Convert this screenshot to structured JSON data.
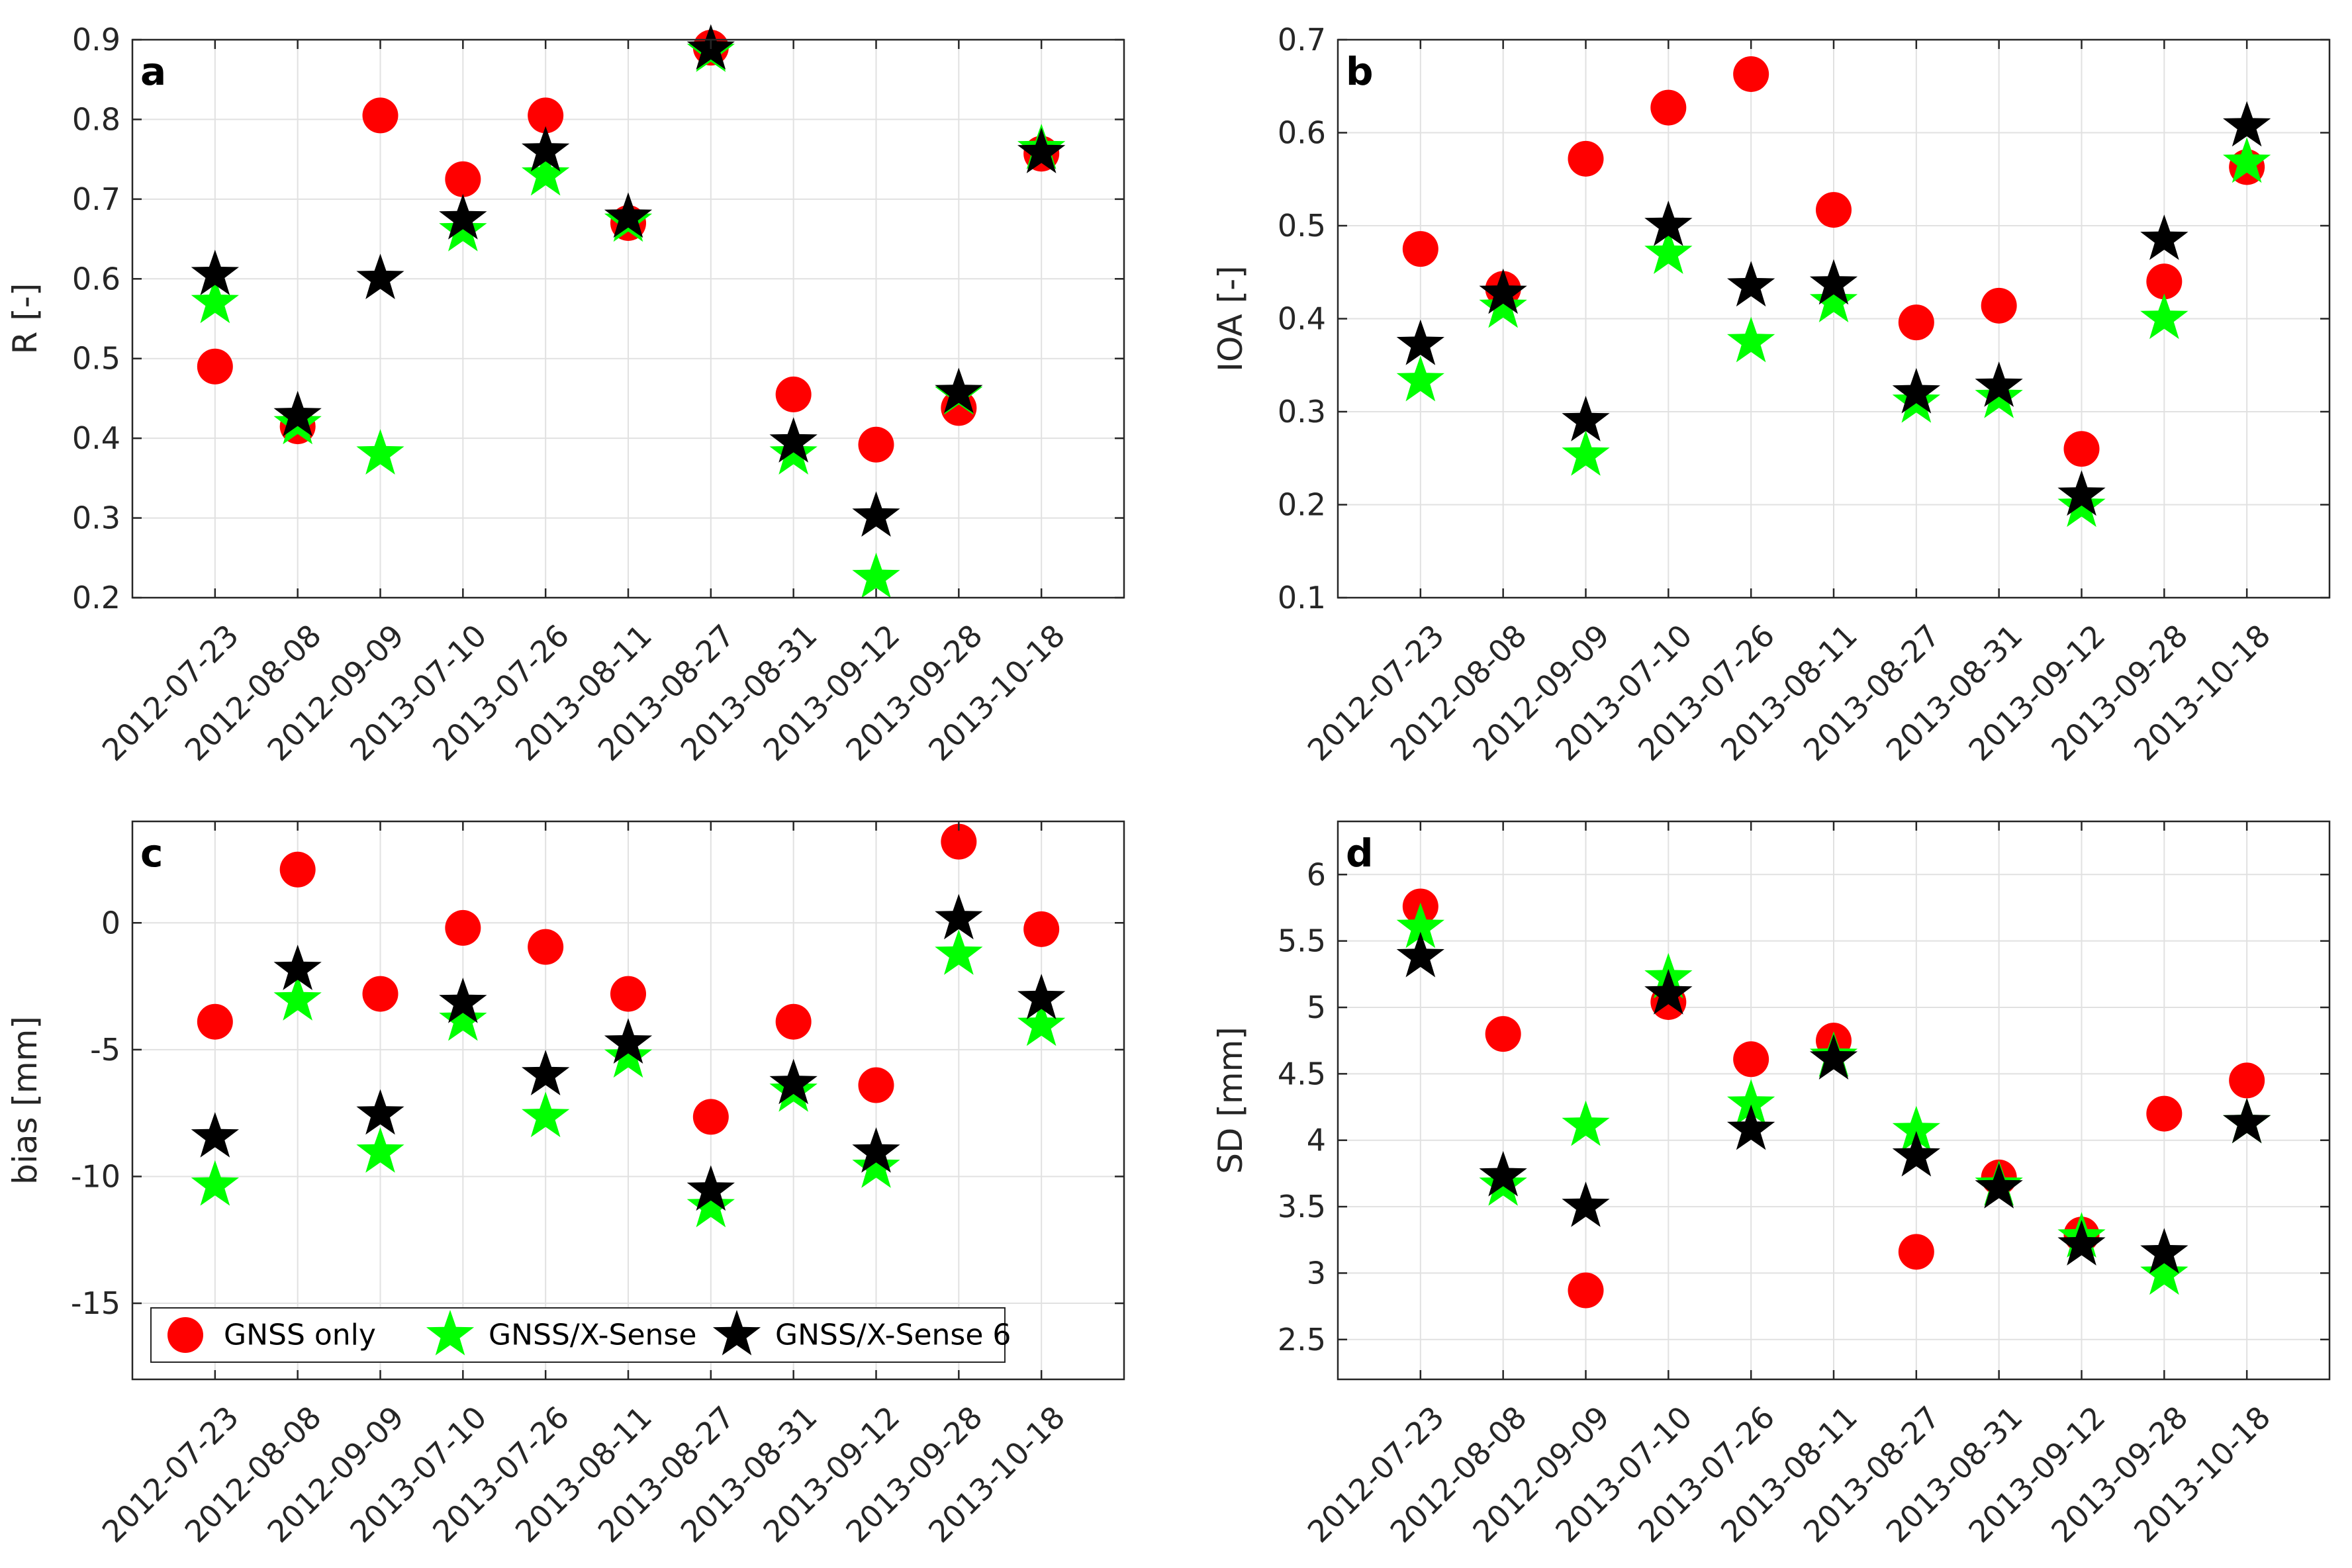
{
  "chart_data": [
    {
      "type": "scatter",
      "panel_label": "a",
      "ylabel": "R [-]",
      "ylim": [
        0.2,
        0.9
      ],
      "yticks": [
        0.2,
        0.3,
        0.4,
        0.5,
        0.6,
        0.7,
        0.8,
        0.9
      ],
      "ytick_labels": [
        "0.2",
        "0.3",
        "0.4",
        "0.5",
        "0.6",
        "0.7",
        "0.8",
        "0.9"
      ],
      "grid": true,
      "categories": [
        "2012-07-23",
        "2012-08-08",
        "2012-09-09",
        "2013-07-10",
        "2013-07-26",
        "2013-08-11",
        "2013-08-27",
        "2013-08-31",
        "2013-09-12",
        "2013-09-28",
        "2013-10-18"
      ],
      "series": [
        {
          "name": "GNSS only",
          "marker": "circle",
          "values": [
            0.49,
            0.415,
            0.805,
            0.725,
            0.805,
            0.67,
            0.89,
            0.455,
            0.392,
            0.438,
            0.757
          ]
        },
        {
          "name": "GNSS/X-Sense",
          "marker": "star",
          "values": [
            0.57,
            0.418,
            0.38,
            0.66,
            0.73,
            0.672,
            0.885,
            0.38,
            0.225,
            0.455,
            0.763
          ]
        },
        {
          "name": "GNSS/X-Sense 6",
          "marker": "star",
          "values": [
            0.605,
            0.428,
            0.6,
            0.675,
            0.76,
            0.677,
            0.888,
            0.395,
            0.302,
            0.457,
            0.758
          ]
        }
      ]
    },
    {
      "type": "scatter",
      "panel_label": "b",
      "ylabel": "IOA [-]",
      "ylim": [
        0.1,
        0.7
      ],
      "yticks": [
        0.1,
        0.2,
        0.3,
        0.4,
        0.5,
        0.6,
        0.7
      ],
      "ytick_labels": [
        "0.1",
        "0.2",
        "0.3",
        "0.4",
        "0.5",
        "0.6",
        "0.7"
      ],
      "grid": true,
      "categories": [
        "2012-07-23",
        "2012-08-08",
        "2012-09-09",
        "2013-07-10",
        "2013-07-26",
        "2013-08-11",
        "2013-08-27",
        "2013-08-31",
        "2013-09-12",
        "2013-09-28",
        "2013-10-18"
      ],
      "series": [
        {
          "name": "GNSS only",
          "marker": "circle",
          "values": [
            0.475,
            0.432,
            0.572,
            0.627,
            0.663,
            0.517,
            0.396,
            0.414,
            0.26,
            0.44,
            0.563
          ]
        },
        {
          "name": "GNSS/X-Sense",
          "marker": "star",
          "values": [
            0.333,
            0.412,
            0.253,
            0.47,
            0.375,
            0.418,
            0.31,
            0.315,
            0.198,
            0.4,
            0.568
          ]
        },
        {
          "name": "GNSS/X-Sense 6",
          "marker": "star",
          "values": [
            0.372,
            0.427,
            0.29,
            0.5,
            0.435,
            0.437,
            0.32,
            0.327,
            0.21,
            0.485,
            0.607
          ]
        }
      ]
    },
    {
      "type": "scatter",
      "panel_label": "c",
      "ylabel": "bias [mm]",
      "ylim": [
        -18,
        4
      ],
      "yticks": [
        -15,
        -10,
        -5,
        0
      ],
      "ytick_labels": [
        "-15",
        "-10",
        "-5",
        "0"
      ],
      "grid": true,
      "categories": [
        "2012-07-23",
        "2012-08-08",
        "2012-09-09",
        "2013-07-10",
        "2013-07-26",
        "2013-08-11",
        "2013-08-27",
        "2013-08-31",
        "2013-09-12",
        "2013-09-28",
        "2013-10-18"
      ],
      "series": [
        {
          "name": "GNSS only",
          "marker": "circle",
          "values": [
            -3.9,
            2.1,
            -2.8,
            -0.2,
            -0.95,
            -2.8,
            -7.65,
            -3.9,
            -6.4,
            3.2,
            -0.25
          ]
        },
        {
          "name": "GNSS/X-Sense",
          "marker": "star",
          "values": [
            -10.35,
            -3.05,
            -9.05,
            -3.85,
            -7.65,
            -5.3,
            -11.2,
            -6.65,
            -9.65,
            -1.25,
            -4.05
          ]
        },
        {
          "name": "GNSS/X-Sense 6",
          "marker": "star",
          "values": [
            -8.45,
            -1.85,
            -7.55,
            -3.15,
            -6.0,
            -4.75,
            -10.55,
            -6.35,
            -9.05,
            0.15,
            -3.0
          ]
        }
      ],
      "legend": {
        "placement": "bottom-left",
        "orientation": "horizontal",
        "entries": [
          "GNSS only",
          "GNSS/X-Sense",
          "GNSS/X-Sense 6"
        ]
      }
    },
    {
      "type": "scatter",
      "panel_label": "d",
      "ylabel": "SD [mm]",
      "ylim": [
        2.2,
        6.4
      ],
      "yticks": [
        2.5,
        3,
        3.5,
        4,
        4.5,
        5,
        5.5,
        6
      ],
      "ytick_labels": [
        "2.5",
        "3",
        "3.5",
        "4",
        "4.5",
        "5",
        "5.5",
        "6"
      ],
      "grid": true,
      "categories": [
        "2012-07-23",
        "2012-08-08",
        "2012-09-09",
        "2013-07-10",
        "2013-07-26",
        "2013-08-11",
        "2013-08-27",
        "2013-08-31",
        "2013-09-12",
        "2013-09-28",
        "2013-10-18"
      ],
      "series": [
        {
          "name": "GNSS only",
          "marker": "circle",
          "values": [
            5.76,
            4.8,
            2.87,
            5.04,
            4.61,
            4.75,
            3.16,
            3.72,
            3.29,
            4.2,
            4.45
          ]
        },
        {
          "name": "GNSS/X-Sense",
          "marker": "star",
          "values": [
            5.6,
            3.66,
            4.11,
            5.22,
            4.27,
            4.63,
            4.07,
            3.66,
            3.27,
            2.99,
            4.13
          ]
        },
        {
          "name": "GNSS/X-Sense 6",
          "marker": "star",
          "values": [
            5.38,
            3.73,
            3.5,
            5.1,
            4.08,
            4.61,
            3.88,
            3.64,
            3.21,
            3.15,
            4.13
          ]
        }
      ]
    }
  ],
  "colors": {
    "GNSS only": "#ff0000",
    "GNSS/X-Sense": "#00ff00",
    "GNSS/X-Sense 6": "#000000",
    "grid": "#e1e1e1",
    "axis": "#262626"
  }
}
